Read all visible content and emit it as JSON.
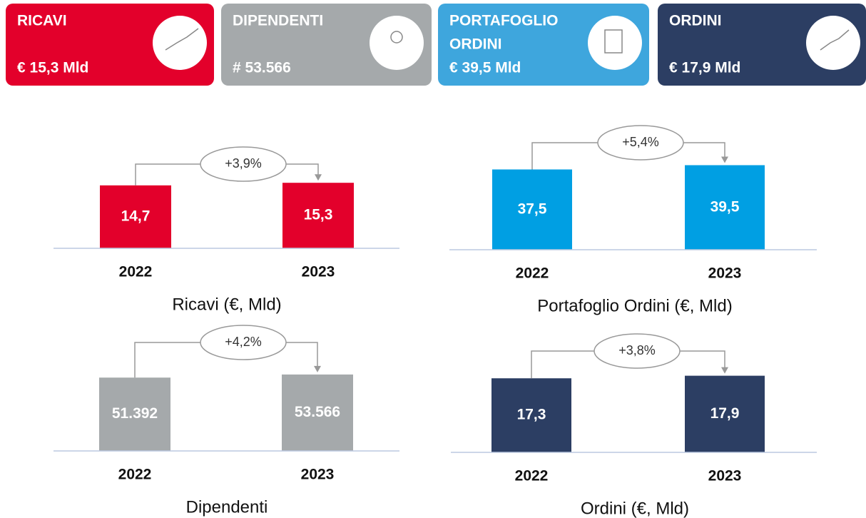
{
  "cards": [
    {
      "title": [
        "RICAVI"
      ],
      "value": "€ 15,3 Mld",
      "color": "#e3002b"
    },
    {
      "title": [
        "DIPENDENTI"
      ],
      "value": "# 53.566",
      "color": "#a5a9ab"
    },
    {
      "title": [
        "PORTAFOGLIO",
        "ORDINI"
      ],
      "value": "€ 39,5 Mld",
      "color": "#3ea6dd"
    },
    {
      "title": [
        "ORDINI"
      ],
      "value": "€ 17,9 Mld",
      "color": "#2c3e63"
    }
  ],
  "chart_data": [
    {
      "type": "bar",
      "title": "Ricavi (€, Mld)",
      "categories": [
        "2022",
        "2023"
      ],
      "values": [
        14.7,
        15.3
      ],
      "value_labels": [
        "14,7",
        "15,3"
      ],
      "color": "#e3002b",
      "ylim": [
        0,
        25
      ],
      "annotation": "+3,9%"
    },
    {
      "type": "bar",
      "title": "Portafoglio Ordini (€, Mld)",
      "categories": [
        "2022",
        "2023"
      ],
      "values": [
        37.5,
        39.5
      ],
      "value_labels": [
        "37,5",
        "39,5"
      ],
      "color": "#009fe3",
      "ylim": [
        0,
        50
      ],
      "annotation": "+5,4%"
    },
    {
      "type": "bar",
      "title": "Dipendenti",
      "categories": [
        "2022",
        "2023"
      ],
      "values": [
        51392,
        53566
      ],
      "value_labels": [
        "51.392",
        "53.566"
      ],
      "color": "#a5a9ab",
      "ylim": [
        0,
        75000
      ],
      "annotation": "+4,2%"
    },
    {
      "type": "bar",
      "title": "Ordini (€, Mld)",
      "categories": [
        "2022",
        "2023"
      ],
      "values": [
        17.3,
        17.9
      ],
      "value_labels": [
        "17,3",
        "17,9"
      ],
      "color": "#2c3e63",
      "ylim": [
        0,
        25
      ],
      "annotation": "+3,8%"
    }
  ]
}
